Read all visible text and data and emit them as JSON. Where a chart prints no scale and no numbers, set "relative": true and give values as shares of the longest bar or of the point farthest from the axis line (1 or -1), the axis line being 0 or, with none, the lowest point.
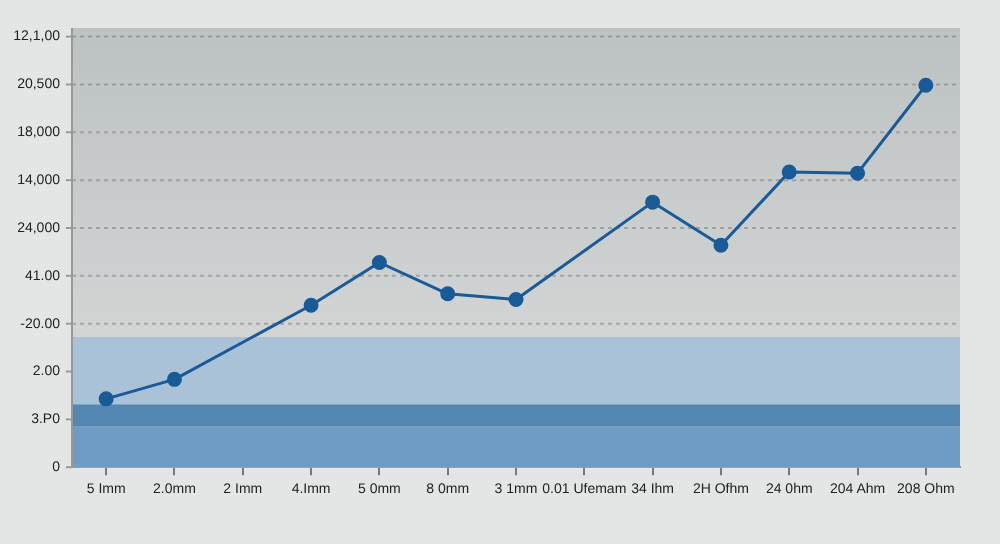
{
  "chart_data": {
    "type": "line",
    "relative": true,
    "categories": [
      "5 Imm",
      "2.0mm",
      "2 Imm",
      "4.Imm",
      "5 0mm",
      "8 0mm",
      "3 1mm",
      "0.01 Ufemam",
      "34 Ihm",
      "2H Ofhm",
      "24 0hm",
      "204 Ahm",
      "208 Ohm"
    ],
    "series": [
      {
        "color": "#1a5a96",
        "values": [
          0.179,
          0.23,
          null,
          0.424,
          0.536,
          0.454,
          0.439,
          null,
          0.694,
          0.581,
          0.773,
          0.77,
          1
        ]
      }
    ],
    "annotations": [
      "0",
      "3.P0",
      "2.00",
      "-20.00",
      "41.00",
      "24,000",
      "14,000",
      "18,000",
      "20,500",
      "12,1,00"
    ],
    "bands": [
      {
        "axis": "y",
        "from": 0,
        "to": 0.341,
        "color": "#a9c2d8"
      },
      {
        "axis": "y",
        "from": 0,
        "to": 0.1075,
        "color": "#6f9cc3"
      },
      {
        "axis": "y",
        "from": 0.1075,
        "to": 0.164,
        "color": "#5587b3"
      }
    ],
    "grid": "y",
    "marker": "circle",
    "line_style": "solid"
  }
}
